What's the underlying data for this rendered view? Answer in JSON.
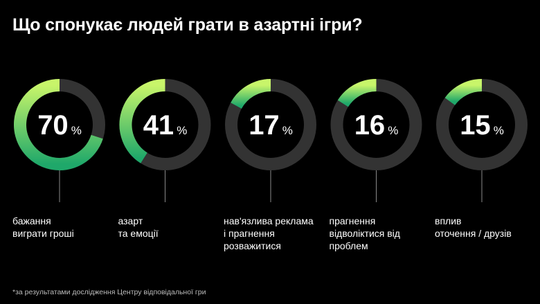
{
  "title": "Що спонукає людей грати в азартні ігри?",
  "footnote": "*за результатами дослідження Центру відповідальної гри",
  "colors": {
    "background": "#000000",
    "track": "#333333",
    "gradient_start": "#c8f56a",
    "gradient_end": "#1fa86a",
    "connector": "#8a8a8a"
  },
  "chart_data": {
    "type": "donut",
    "unit": "%",
    "items": [
      {
        "value": 70,
        "label": "бажання\nвиграти гроші"
      },
      {
        "value": 41,
        "label": "азарт\nта емоції"
      },
      {
        "value": 17,
        "label": "нав'язлива реклама\nі прагнення\nрозважитися"
      },
      {
        "value": 16,
        "label": "прагнення\nвідволіктися від\nпроблем"
      },
      {
        "value": 15,
        "label": "вплив\nоточення / друзів"
      }
    ]
  }
}
